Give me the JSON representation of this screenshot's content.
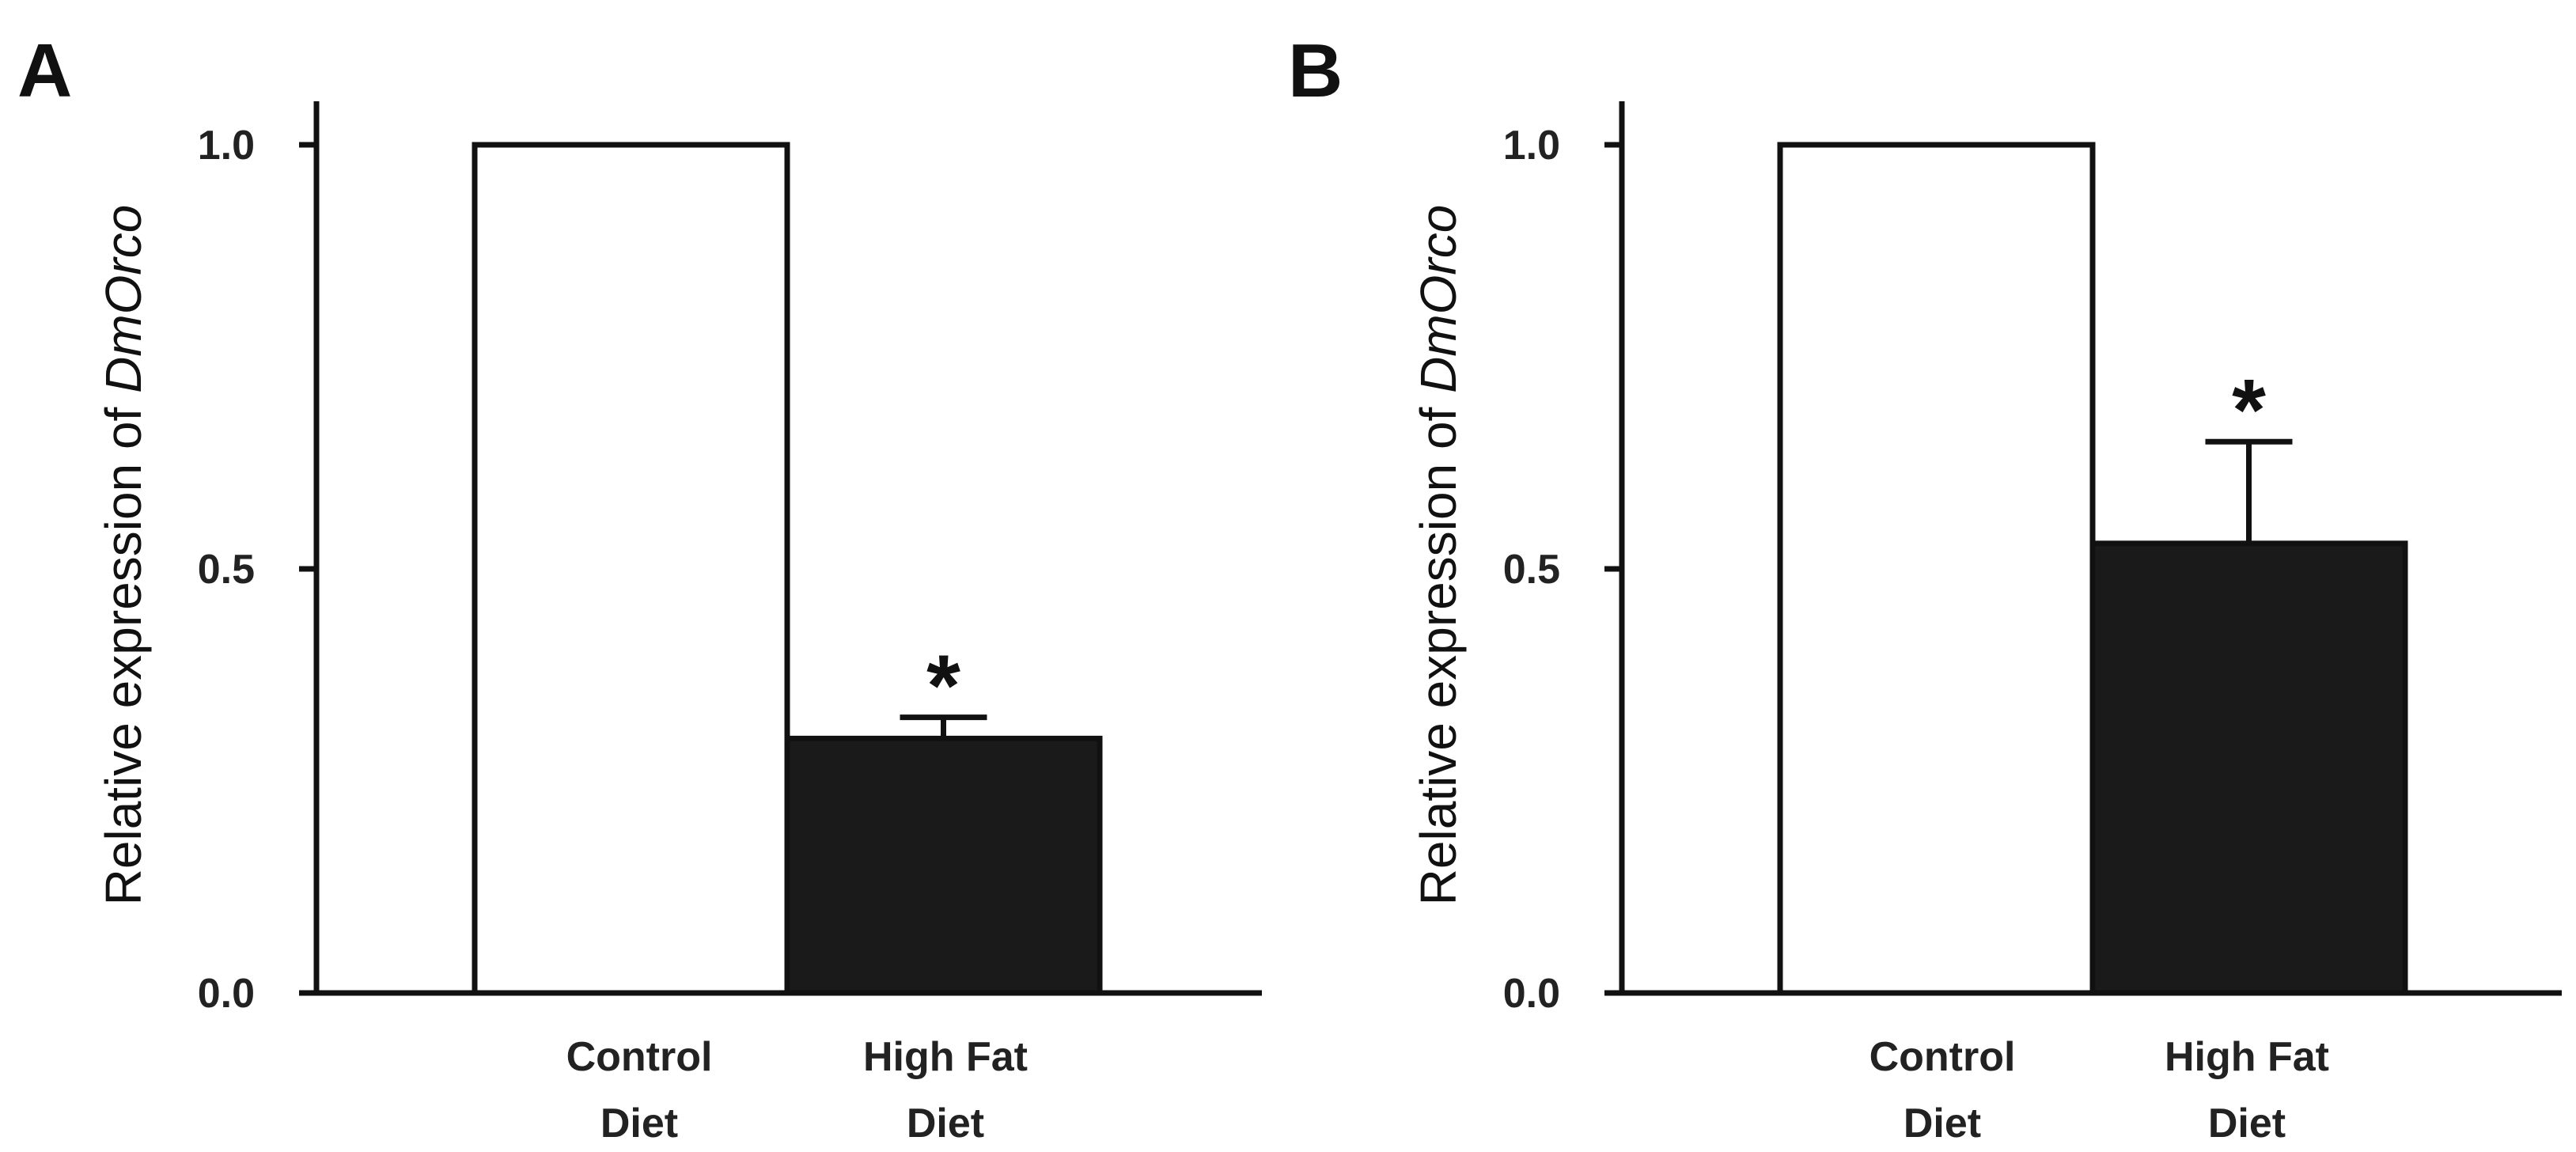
{
  "figure": {
    "background": "#ffffff",
    "ink": "#111111"
  },
  "chart_data": [
    {
      "panel": "A",
      "type": "bar",
      "title": "",
      "xlabel": "",
      "ylabel_prefix": "Relative expression of ",
      "ylabel_gene": "DmOrco",
      "ylim": [
        0,
        1.0
      ],
      "yticks": [
        0.0,
        0.5,
        1.0
      ],
      "ytick_labels": [
        "0.0",
        "0.5",
        "1.0"
      ],
      "categories": [
        {
          "line1": "Control",
          "line2": "Diet"
        },
        {
          "line1": "High Fat",
          "line2": "Diet"
        }
      ],
      "values": [
        1.0,
        0.3
      ],
      "errors": [
        0,
        0.025
      ],
      "bar_fills": [
        "#ffffff",
        "#1a1a1a"
      ],
      "significance": [
        "",
        "*"
      ]
    },
    {
      "panel": "B",
      "type": "bar",
      "title": "",
      "xlabel": "",
      "ylabel_prefix": "Relative expression of ",
      "ylabel_gene": "DmOrco",
      "ylim": [
        0,
        1.0
      ],
      "yticks": [
        0.0,
        0.5,
        1.0
      ],
      "ytick_labels": [
        "0.0",
        "0.5",
        "1.0"
      ],
      "categories": [
        {
          "line1": "Control",
          "line2": "Diet"
        },
        {
          "line1": "High Fat",
          "line2": "Diet"
        }
      ],
      "values": [
        1.0,
        0.53
      ],
      "errors": [
        0,
        0.12
      ],
      "bar_fills": [
        "#ffffff",
        "#1a1a1a"
      ],
      "significance": [
        "",
        "*"
      ]
    }
  ]
}
